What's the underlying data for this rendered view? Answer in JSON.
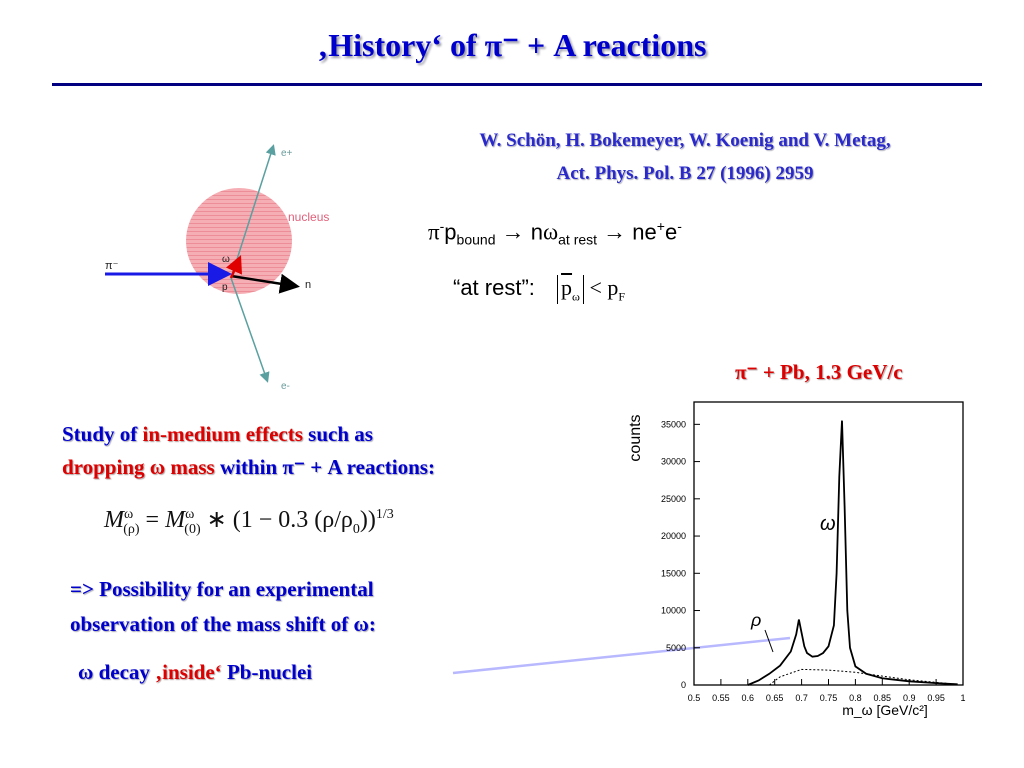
{
  "slide": {
    "title": "‚History‘ of π⁻ + A reactions",
    "reference_line1": "W. Schön, H. Bokemeyer, W. Koenig and V. Metag,",
    "reference_line2": "Act. Phys. Pol. B 27 (1996) 2959",
    "reaction": {
      "pi": "π",
      "minus": "-",
      "p": "p",
      "bound": "bound",
      "arrow1": "→",
      "n1": "n",
      "omega": "ω",
      "at_rest_sub": "at rest",
      "arrow2": "→",
      "ne": "ne",
      "plus": "+",
      "e": "e",
      "minus2": "-"
    },
    "at_rest": {
      "label": "“at rest”:",
      "p": "p",
      "p_sub": "ω",
      "lt": " < p",
      "f_sub": "F"
    },
    "study": {
      "part1": "Study of ",
      "part2": "in-medium effects",
      "part3": "  such as",
      "part4": "dropping ω mass",
      "part5": " within π⁻ + A reactions:"
    },
    "formula": {
      "M": "M",
      "sup": "ω",
      "sub_rho": "(ρ)",
      "eq": " = ",
      "M2": "M",
      "sup2": "ω",
      "sub0": "(0)",
      "rest": " ∗ (1 − 0.3 (ρ/ρ",
      "rho0_sub": "0",
      "close": "))",
      "power": "1/3"
    },
    "possibility_line1": "=> Possibility for an experimental",
    "possibility_line2": "observation of the mass shift of ω:",
    "decay": {
      "part1": "ω decay ",
      "part2": "‚inside‘",
      "part3": "  Pb-nuclei"
    }
  },
  "diagram": {
    "labels": {
      "e_plus": "e+",
      "nucleus": "nucleus",
      "pi_minus": "π⁻",
      "omega": "ω",
      "p": "p",
      "n": "n",
      "e_minus": "e-"
    }
  },
  "chart_data": {
    "type": "line",
    "title": "π⁻ + Pb, 1.3 GeV/c",
    "xlabel": "m_ω [GeV/c²]",
    "ylabel": "counts",
    "xlim": [
      0.5,
      1.0
    ],
    "ylim": [
      0,
      38000
    ],
    "x_ticks": [
      "0.5",
      "0.55",
      "0.6",
      "0.65",
      "0.7",
      "0.75",
      "0.8",
      "0.85",
      "0.9",
      "0.95",
      "1"
    ],
    "y_ticks": [
      "0",
      "5000",
      "10000",
      "15000",
      "20000",
      "25000",
      "30000",
      "35000"
    ],
    "annotations": [
      "ρ",
      "ω"
    ],
    "series": [
      {
        "x": [
          0.6,
          0.62,
          0.64,
          0.66,
          0.68,
          0.69,
          0.695,
          0.7,
          0.705,
          0.71,
          0.72,
          0.73,
          0.74,
          0.75,
          0.76,
          0.765,
          0.77,
          0.775,
          0.78,
          0.785,
          0.79,
          0.8,
          0.82,
          0.85,
          0.9,
          0.95,
          0.99
        ],
        "y": [
          0,
          600,
          1500,
          2600,
          4500,
          6800,
          8800,
          7000,
          5200,
          4300,
          3800,
          3900,
          4300,
          5200,
          8000,
          15000,
          28000,
          35500,
          24000,
          10000,
          5000,
          2500,
          1500,
          900,
          500,
          250,
          100
        ]
      },
      {
        "x": [
          0.64,
          0.66,
          0.7,
          0.75,
          0.8,
          0.85,
          0.9,
          0.95,
          0.99
        ],
        "y": [
          0,
          1100,
          2100,
          2000,
          1700,
          1200,
          700,
          350,
          100
        ]
      }
    ]
  }
}
